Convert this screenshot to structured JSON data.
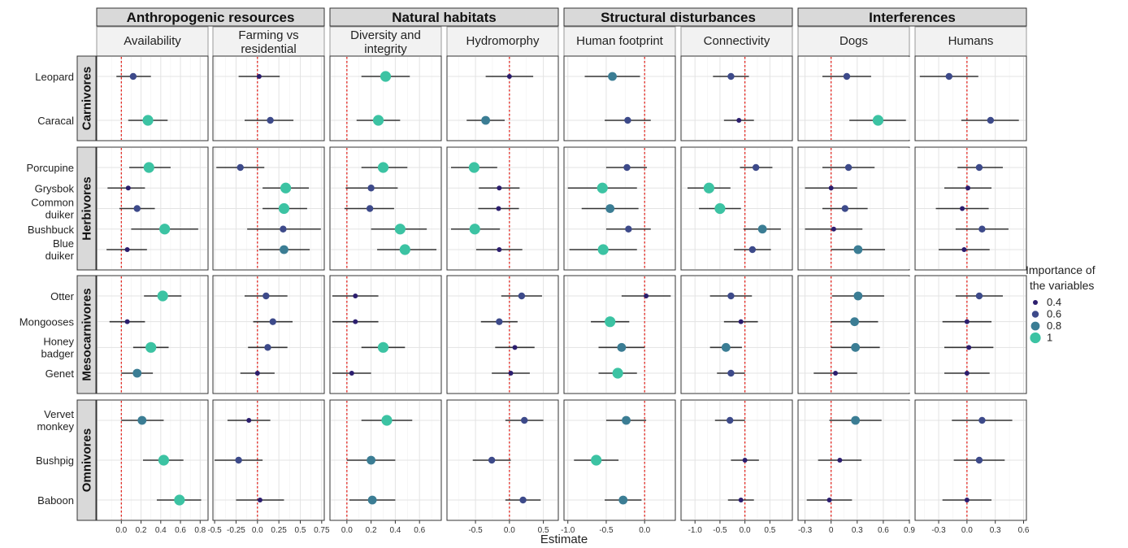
{
  "chart_data": {
    "type": "scatter",
    "subtype": "faceted coefficient (dot-and-whisker) plot",
    "xlabel": "Estimate",
    "reference_line": {
      "x": 0,
      "style": "red dotted"
    },
    "grid": true,
    "legend": {
      "title": "Importance of the variables",
      "position": "right",
      "items": [
        {
          "label": "0.4",
          "value": 0.4
        },
        {
          "label": "0.6",
          "value": 0.6
        },
        {
          "label": "0.8",
          "value": 0.8
        },
        {
          "label": "1",
          "value": 1.0
        }
      ],
      "color_scale": [
        {
          "value": 0.4,
          "color": "#2c1e6e"
        },
        {
          "value": 0.6,
          "color": "#3d4a8a"
        },
        {
          "value": 0.8,
          "color": "#3b7d94"
        },
        {
          "value": 1.0,
          "color": "#3cc3a3"
        }
      ]
    },
    "column_groups": [
      {
        "label": "Anthropogenic resources",
        "columns": [
          0,
          1
        ]
      },
      {
        "label": "Natural habitats",
        "columns": [
          2,
          3
        ]
      },
      {
        "label": "Structural disturbances",
        "columns": [
          4,
          5
        ]
      },
      {
        "label": "Interferences",
        "columns": [
          6,
          7
        ]
      }
    ],
    "columns": [
      {
        "label": "Availability",
        "xlim": [
          -0.25,
          0.88
        ],
        "ticks": [
          0.0,
          0.2,
          0.4,
          0.6,
          0.8
        ],
        "tick_labels": [
          "0.0",
          "0.2",
          "0.4",
          "0.6",
          "0.8"
        ]
      },
      {
        "label": "Farming vs\nresidential",
        "xlim": [
          -0.52,
          0.78
        ],
        "ticks": [
          -0.5,
          -0.25,
          0.0,
          0.25,
          0.5,
          0.75
        ],
        "tick_labels": [
          "-0.5",
          "-0.25",
          "0.0",
          "0.25",
          "0.5",
          "0.75"
        ]
      },
      {
        "label": "Diversity and\nintegrity",
        "xlim": [
          -0.14,
          0.78
        ],
        "ticks": [
          0.0,
          0.2,
          0.4,
          0.6
        ],
        "tick_labels": [
          "0.0",
          "0.2",
          "0.4",
          "0.6"
        ]
      },
      {
        "label": "Hydromorphy",
        "xlim": [
          -0.92,
          0.72
        ],
        "ticks": [
          -0.5,
          0.0,
          0.5
        ],
        "tick_labels": [
          "-0.5",
          "0.0",
          "0.5"
        ]
      },
      {
        "label": "Human footprint",
        "xlim": [
          -1.05,
          0.4
        ],
        "ticks": [
          -1.0,
          -0.5,
          0.0
        ],
        "tick_labels": [
          "-1.0",
          "-0.5",
          "0.0"
        ]
      },
      {
        "label": "Connectivity",
        "xlim": [
          -1.28,
          0.95
        ],
        "ticks": [
          -1.0,
          -0.5,
          0.0,
          0.5
        ],
        "tick_labels": [
          "-1.0",
          "-0.5",
          "0.0",
          "0.5"
        ]
      },
      {
        "label": "Dogs",
        "xlim": [
          -0.38,
          0.9
        ],
        "ticks": [
          -0.3,
          0.0,
          0.3,
          0.6,
          0.9
        ],
        "tick_labels": [
          "-0.3",
          "0",
          "0.3",
          "0.6",
          "0.9"
        ]
      },
      {
        "label": "Humans",
        "xlim": [
          -0.55,
          0.63
        ],
        "ticks": [
          -0.3,
          0.0,
          0.3,
          0.6
        ],
        "tick_labels": [
          "-0.3",
          "0.0",
          "0.3",
          "0.6"
        ]
      }
    ],
    "rows": [
      {
        "label": "Carnivores",
        "species": [
          "Leopard",
          "Caracal"
        ]
      },
      {
        "label": "Herbivores",
        "species": [
          "Porcupine",
          "Grysbok",
          "Common\nduiker",
          "Bushbuck",
          "Blue\nduiker"
        ]
      },
      {
        "label": "Mesocarnivores",
        "species": [
          "Otter",
          "Mongooses",
          "Honey\nbadger",
          "Genet"
        ]
      },
      {
        "label": "Omnivores",
        "species": [
          "Vervet\nmonkey",
          "Bushpig",
          "Baboon"
        ]
      }
    ],
    "point_format": "[estimate, lower, upper, importance]",
    "points": [
      [
        [
          [
            0.12,
            -0.05,
            0.3,
            0.6
          ],
          [
            0.27,
            0.07,
            0.47,
            1.0
          ]
        ],
        [
          [
            0.02,
            -0.22,
            0.26,
            0.4
          ],
          [
            0.15,
            -0.15,
            0.42,
            0.6
          ]
        ],
        [
          [
            0.32,
            0.12,
            0.52,
            1.0
          ],
          [
            0.26,
            0.08,
            0.44,
            1.0
          ]
        ],
        [
          [
            0.0,
            -0.35,
            0.35,
            0.4
          ],
          [
            -0.35,
            -0.63,
            -0.07,
            0.8
          ]
        ],
        [
          [
            -0.42,
            -0.78,
            -0.06,
            0.8
          ],
          [
            -0.22,
            -0.52,
            0.08,
            0.6
          ]
        ],
        [
          [
            -0.28,
            -0.64,
            0.08,
            0.6
          ],
          [
            -0.12,
            -0.42,
            0.18,
            0.4
          ]
        ],
        [
          [
            0.18,
            -0.1,
            0.46,
            0.6
          ],
          [
            0.54,
            0.21,
            0.86,
            1.0
          ]
        ],
        [
          [
            -0.19,
            -0.5,
            0.12,
            0.6
          ],
          [
            0.25,
            -0.06,
            0.55,
            0.6
          ]
        ]
      ],
      [
        [
          [
            0.28,
            0.08,
            0.5,
            1.0
          ],
          [
            0.07,
            -0.14,
            0.24,
            0.4
          ],
          [
            0.16,
            -0.02,
            0.34,
            0.6
          ],
          [
            0.44,
            0.1,
            0.78,
            1.0
          ],
          [
            0.06,
            -0.15,
            0.26,
            0.4
          ]
        ],
        [
          [
            -0.2,
            -0.48,
            0.08,
            0.6
          ],
          [
            0.33,
            0.06,
            0.6,
            1.0
          ],
          [
            0.31,
            0.06,
            0.58,
            1.0
          ],
          [
            0.3,
            -0.12,
            0.74,
            0.6
          ],
          [
            0.31,
            0.02,
            0.61,
            0.8
          ]
        ],
        [
          [
            0.3,
            0.12,
            0.5,
            1.0
          ],
          [
            0.2,
            -0.01,
            0.42,
            0.6
          ],
          [
            0.19,
            -0.02,
            0.39,
            0.6
          ],
          [
            0.44,
            0.2,
            0.66,
            1.0
          ],
          [
            0.48,
            0.25,
            0.74,
            1.0
          ]
        ],
        [
          [
            -0.52,
            -0.86,
            -0.18,
            1.0
          ],
          [
            -0.15,
            -0.45,
            0.15,
            0.4
          ],
          [
            -0.16,
            -0.46,
            0.14,
            0.4
          ],
          [
            -0.51,
            -0.86,
            -0.14,
            1.0
          ],
          [
            -0.15,
            -0.49,
            0.19,
            0.4
          ]
        ],
        [
          [
            -0.23,
            -0.5,
            0.03,
            0.6
          ],
          [
            -0.55,
            -1.0,
            -0.1,
            1.0
          ],
          [
            -0.45,
            -0.82,
            -0.08,
            0.8
          ],
          [
            -0.21,
            -0.5,
            0.08,
            0.6
          ],
          [
            -0.54,
            -0.98,
            -0.1,
            1.0
          ]
        ],
        [
          [
            0.22,
            -0.1,
            0.55,
            0.6
          ],
          [
            -0.72,
            -1.15,
            -0.29,
            1.0
          ],
          [
            -0.5,
            -0.92,
            -0.08,
            1.0
          ],
          [
            0.35,
            -0.03,
            0.72,
            0.8
          ],
          [
            0.15,
            -0.22,
            0.52,
            0.6
          ]
        ],
        [
          [
            0.2,
            -0.1,
            0.5,
            0.6
          ],
          [
            0.0,
            -0.3,
            0.3,
            0.4
          ],
          [
            0.16,
            -0.1,
            0.42,
            0.6
          ],
          [
            0.03,
            -0.3,
            0.36,
            0.4
          ],
          [
            0.31,
            0.0,
            0.62,
            0.8
          ]
        ],
        [
          [
            0.13,
            -0.1,
            0.38,
            0.6
          ],
          [
            0.01,
            -0.24,
            0.26,
            0.4
          ],
          [
            -0.05,
            -0.33,
            0.23,
            0.4
          ],
          [
            0.16,
            -0.12,
            0.44,
            0.6
          ],
          [
            -0.03,
            -0.3,
            0.24,
            0.4
          ]
        ]
      ],
      [
        [
          [
            0.42,
            0.23,
            0.61,
            1.0
          ],
          [
            0.06,
            -0.12,
            0.24,
            0.4
          ],
          [
            0.3,
            0.12,
            0.48,
            1.0
          ],
          [
            0.16,
            0.0,
            0.32,
            0.8
          ]
        ],
        [
          [
            0.1,
            -0.15,
            0.35,
            0.6
          ],
          [
            0.18,
            -0.05,
            0.41,
            0.6
          ],
          [
            0.12,
            -0.11,
            0.35,
            0.6
          ],
          [
            0.0,
            -0.2,
            0.2,
            0.4
          ]
        ],
        [
          [
            0.07,
            -0.12,
            0.26,
            0.4
          ],
          [
            0.07,
            -0.12,
            0.26,
            0.4
          ],
          [
            0.3,
            0.12,
            0.48,
            1.0
          ],
          [
            0.04,
            -0.12,
            0.2,
            0.4
          ]
        ],
        [
          [
            0.18,
            -0.12,
            0.48,
            0.6
          ],
          [
            -0.15,
            -0.42,
            0.12,
            0.6
          ],
          [
            0.08,
            -0.21,
            0.37,
            0.4
          ],
          [
            0.02,
            -0.26,
            0.3,
            0.4
          ]
        ],
        [
          [
            0.02,
            -0.3,
            0.34,
            0.4
          ],
          [
            -0.45,
            -0.7,
            -0.2,
            1.0
          ],
          [
            -0.3,
            -0.6,
            0.0,
            0.8
          ],
          [
            -0.35,
            -0.6,
            -0.1,
            1.0
          ]
        ],
        [
          [
            -0.28,
            -0.7,
            0.14,
            0.6
          ],
          [
            -0.08,
            -0.42,
            0.26,
            0.4
          ],
          [
            -0.38,
            -0.7,
            -0.06,
            0.8
          ],
          [
            -0.28,
            -0.56,
            0.0,
            0.6
          ]
        ],
        [
          [
            0.31,
            0.01,
            0.61,
            0.8
          ],
          [
            0.27,
            0.0,
            0.54,
            0.8
          ],
          [
            0.28,
            0.0,
            0.56,
            0.8
          ],
          [
            0.05,
            -0.2,
            0.3,
            0.4
          ]
        ],
        [
          [
            0.13,
            -0.12,
            0.38,
            0.6
          ],
          [
            0.0,
            -0.26,
            0.26,
            0.4
          ],
          [
            0.02,
            -0.24,
            0.28,
            0.4
          ],
          [
            0.0,
            -0.24,
            0.24,
            0.4
          ]
        ]
      ],
      [
        [
          [
            0.21,
            0.0,
            0.43,
            0.8
          ],
          [
            0.43,
            0.22,
            0.63,
            1.0
          ],
          [
            0.59,
            0.36,
            0.81,
            1.0
          ]
        ],
        [
          [
            -0.1,
            -0.35,
            0.15,
            0.4
          ],
          [
            -0.22,
            -0.5,
            0.06,
            0.6
          ],
          [
            0.03,
            -0.25,
            0.31,
            0.4
          ]
        ],
        [
          [
            0.33,
            0.12,
            0.54,
            1.0
          ],
          [
            0.2,
            0.0,
            0.4,
            0.8
          ],
          [
            0.21,
            0.02,
            0.4,
            0.8
          ]
        ],
        [
          [
            0.22,
            -0.06,
            0.5,
            0.6
          ],
          [
            -0.26,
            -0.54,
            0.02,
            0.6
          ],
          [
            0.2,
            -0.06,
            0.46,
            0.6
          ]
        ],
        [
          [
            -0.24,
            -0.5,
            0.02,
            0.8
          ],
          [
            -0.63,
            -0.92,
            -0.34,
            1.0
          ],
          [
            -0.28,
            -0.52,
            -0.04,
            0.8
          ]
        ],
        [
          [
            -0.3,
            -0.6,
            0.0,
            0.6
          ],
          [
            0.0,
            -0.28,
            0.28,
            0.4
          ],
          [
            -0.08,
            -0.34,
            0.18,
            0.4
          ]
        ],
        [
          [
            0.28,
            -0.02,
            0.58,
            0.8
          ],
          [
            0.1,
            -0.15,
            0.35,
            0.4
          ],
          [
            -0.02,
            -0.28,
            0.24,
            0.4
          ]
        ],
        [
          [
            0.16,
            -0.16,
            0.48,
            0.6
          ],
          [
            0.13,
            -0.14,
            0.4,
            0.6
          ],
          [
            0.0,
            -0.26,
            0.26,
            0.4
          ]
        ]
      ]
    ]
  }
}
